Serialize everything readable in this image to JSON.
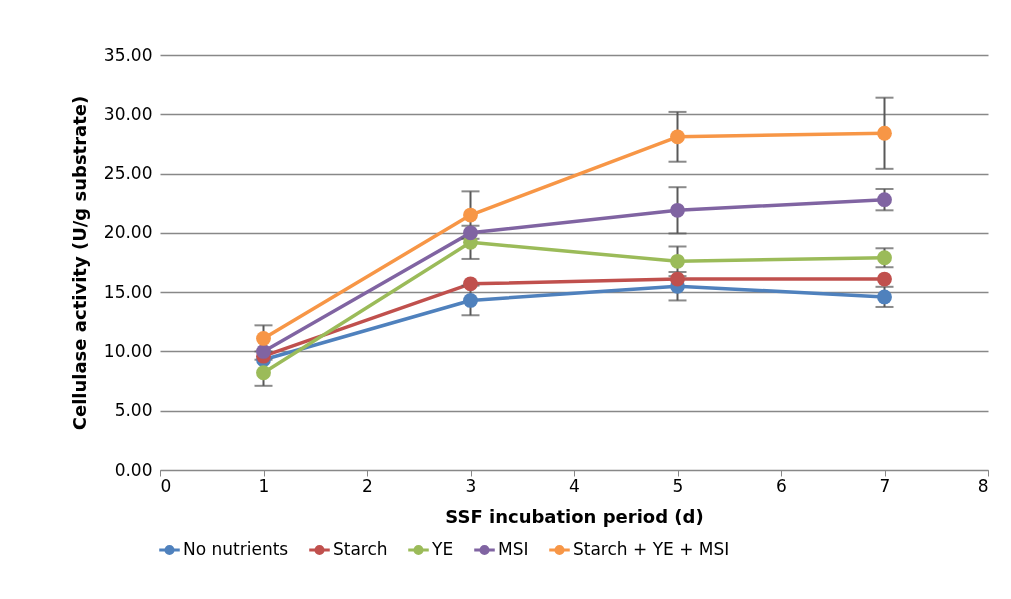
{
  "chart_data": {
    "type": "line",
    "xlabel": "SSF incubation period (d)",
    "ylabel": "Cellulase activity (U/g substrate)",
    "x": [
      1,
      3,
      5,
      7
    ],
    "xlim": [
      0,
      8
    ],
    "xticks": [
      0,
      1,
      2,
      3,
      4,
      5,
      6,
      7,
      8
    ],
    "ylim": [
      0,
      35
    ],
    "yticks": [
      {
        "value": 0,
        "label": "0.00"
      },
      {
        "value": 5,
        "label": "5.00"
      },
      {
        "value": 10,
        "label": "10.00"
      },
      {
        "value": 15,
        "label": "15.00"
      },
      {
        "value": 20,
        "label": "20.00"
      },
      {
        "value": 25,
        "label": "25.00"
      },
      {
        "value": 30,
        "label": "30.00"
      },
      {
        "value": 35,
        "label": "35.00"
      }
    ],
    "grid": "y",
    "legend": "bottom",
    "marker": "circle",
    "line_style": "solid",
    "series": [
      {
        "name": "No nutrients",
        "color": "#4f81bd",
        "values": [
          9.3,
          14.3,
          15.5,
          14.6
        ],
        "errors": [
          null,
          1.25,
          1.2,
          0.85
        ]
      },
      {
        "name": "Starch",
        "color": "#c0504d",
        "values": [
          9.6,
          15.7,
          16.1,
          16.1
        ],
        "errors": [
          null,
          null,
          null,
          null
        ]
      },
      {
        "name": "YE",
        "color": "#9bbb59",
        "values": [
          8.2,
          19.2,
          17.6,
          17.9
        ],
        "errors": [
          1.1,
          1.4,
          1.25,
          0.8
        ]
      },
      {
        "name": "MSI",
        "color": "#8064a2",
        "values": [
          10.0,
          20.0,
          21.9,
          22.8
        ],
        "errors": [
          null,
          null,
          1.95,
          0.9
        ]
      },
      {
        "name": "Starch + YE + MSI",
        "color": "#f79646",
        "values": [
          11.1,
          21.5,
          28.1,
          28.4
        ],
        "errors": [
          1.1,
          2.0,
          2.1,
          3.0
        ]
      }
    ]
  }
}
